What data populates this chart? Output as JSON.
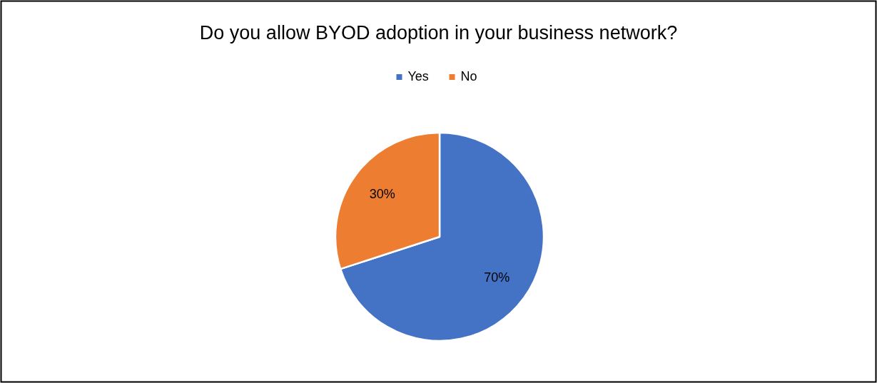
{
  "chart_data": {
    "type": "pie",
    "title": "Do you allow BYOD adoption in your business network?",
    "categories": [
      "Yes",
      "No"
    ],
    "values": [
      70,
      30
    ],
    "colors": [
      "#4472c4",
      "#ed7d31"
    ],
    "value_labels": [
      "70%",
      "30%"
    ],
    "legend": "top"
  }
}
